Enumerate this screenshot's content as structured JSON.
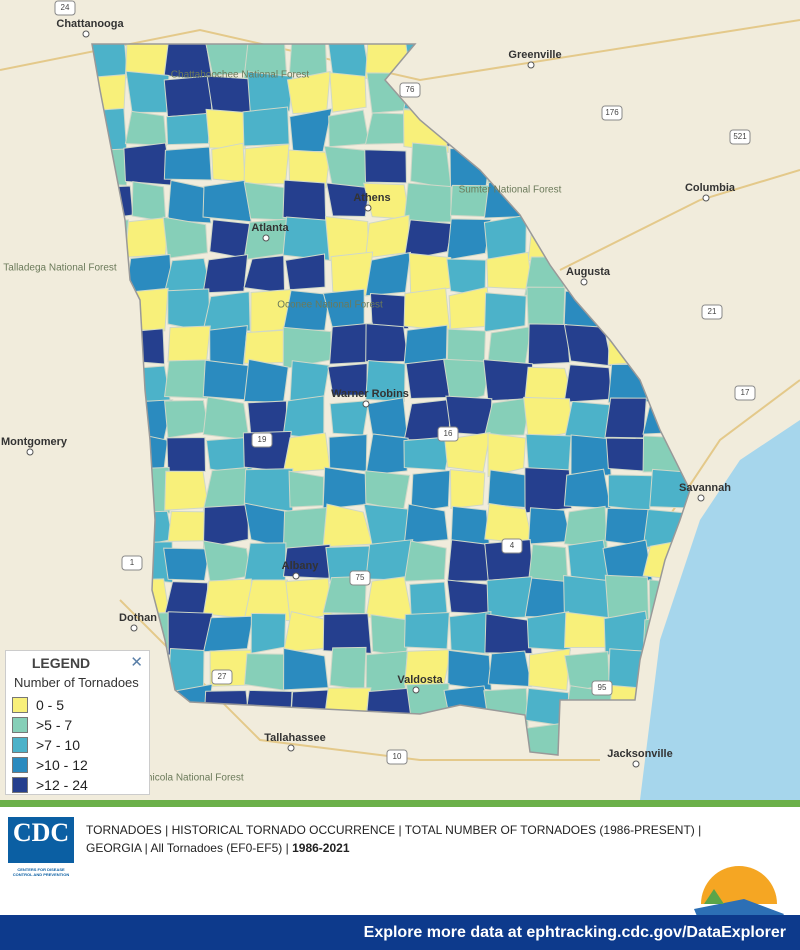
{
  "map": {
    "labels": [
      "Chattanooga",
      "Greenville",
      "Columbia",
      "Augusta",
      "Atlanta",
      "Athens",
      "Warner Robins",
      "Albany",
      "Valdosta",
      "Savannah",
      "Montgomery",
      "Dothan",
      "Tallahassee",
      "Jacksonville"
    ],
    "forests": [
      "Talladega National Forest",
      "Sumter National Forest",
      "Oconee National Forest",
      "Chattahoochee National Forest",
      "Apalachicola National Forest"
    ],
    "roads": [
      "24",
      "76",
      "176",
      "521",
      "21",
      "17",
      "16",
      "75",
      "10",
      "27",
      "19",
      "1",
      "4",
      "95"
    ]
  },
  "legend": {
    "title": "LEGEND",
    "close": "✕",
    "subtitle": "Number of Tornadoes",
    "items": [
      {
        "label": "0 - 5",
        "color": "#f8f07a"
      },
      {
        "label": ">5 - 7",
        "color": "#86cfb8"
      },
      {
        "label": ">7 - 10",
        "color": "#4cb2c9"
      },
      {
        "label": ">10 - 12",
        "color": "#2b8bbf"
      },
      {
        "label": ">12 - 24",
        "color": "#253f8e"
      }
    ]
  },
  "footer": {
    "logo": "CDC",
    "logo_text": "CENTERS FOR DISEASE CONTROL AND PREVENTION",
    "line1": "TORNADOES | HISTORICAL TORNADO OCCURRENCE | TOTAL NUMBER OF TORNADOES (1986-PRESENT) |",
    "line2": "GEORGIA | All Tornadoes (EF0-EF5) |",
    "years": "1986-2021",
    "link": "Explore more data at ephtracking.cdc.gov/DataExplorer"
  }
}
